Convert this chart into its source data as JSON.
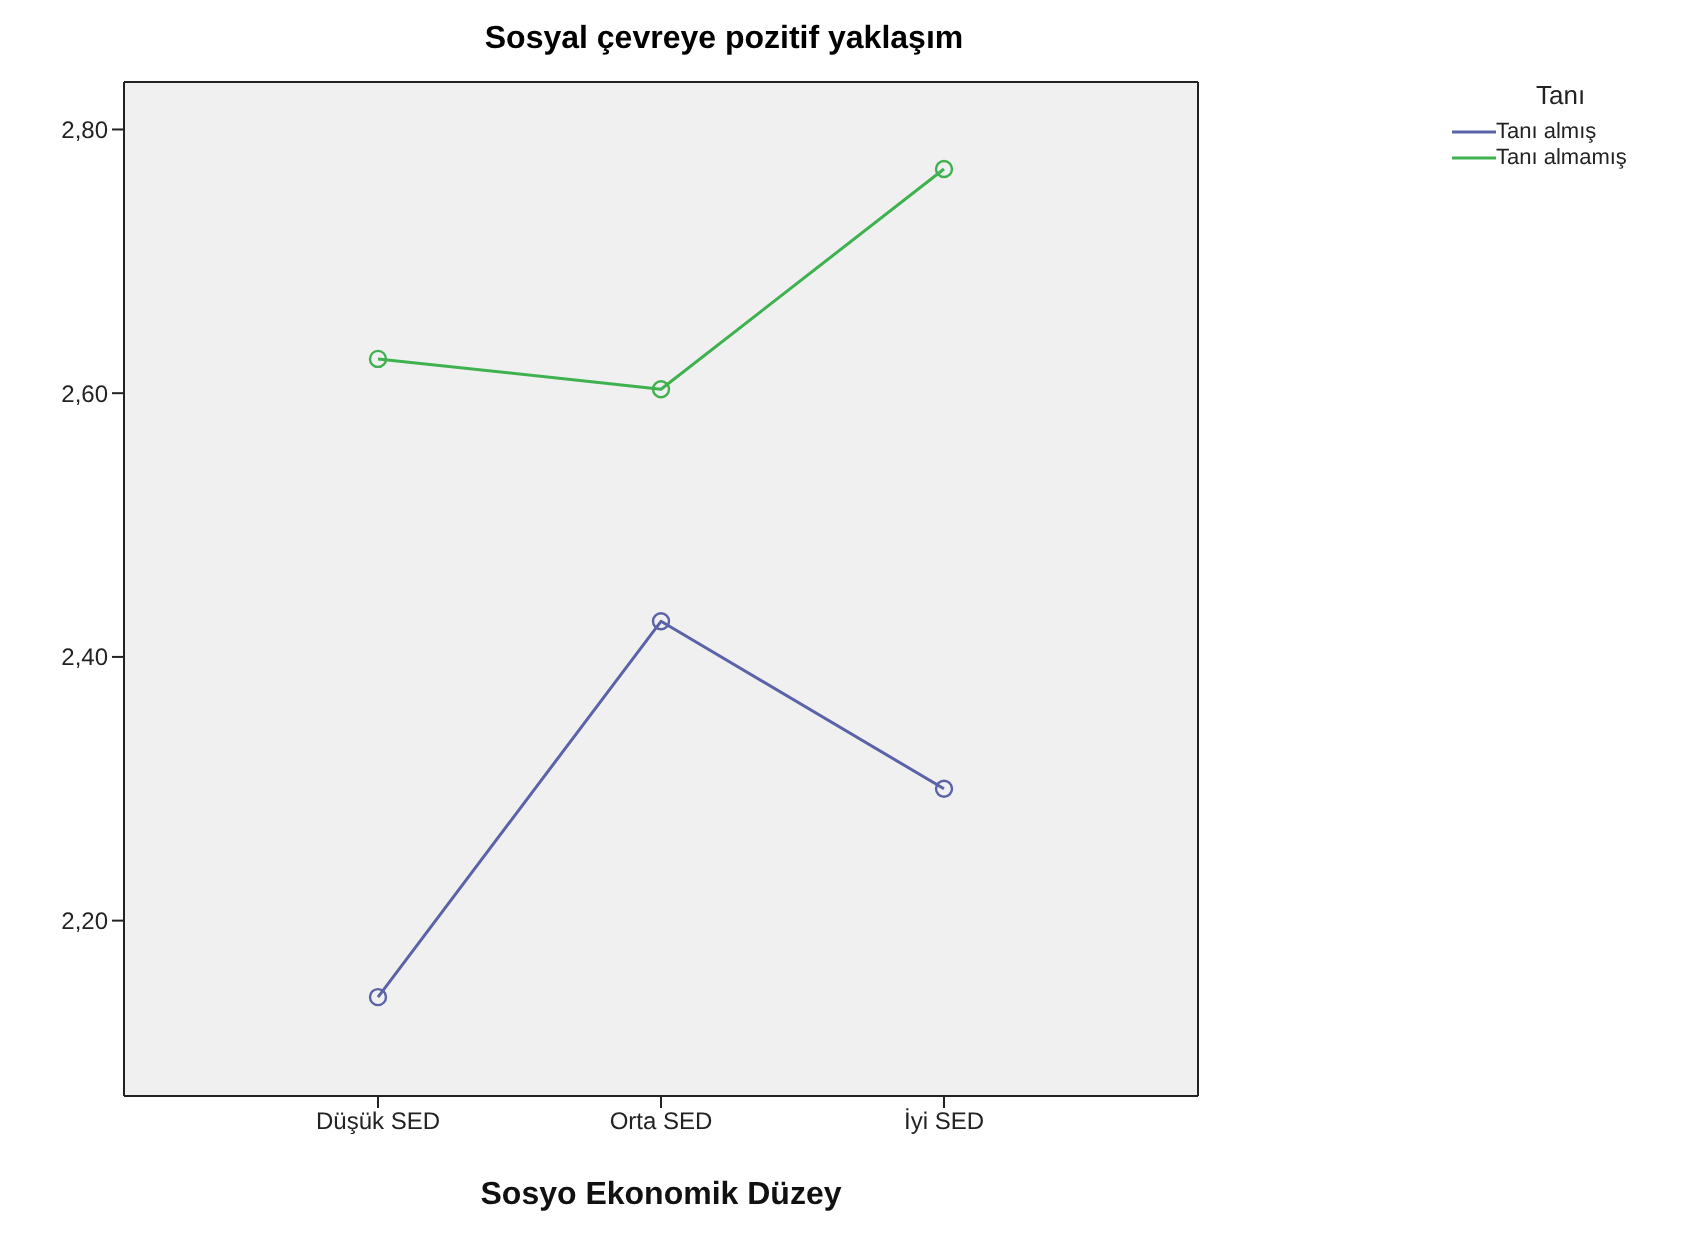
{
  "chart_data": {
    "type": "line",
    "title": "Sosyal çevreye pozitif yaklaşım",
    "xlabel": "Sosyo Ekonomik Düzey",
    "legend_title": "Tanı",
    "categories": [
      "Düşük SED",
      "Orta SED",
      "İyi SED"
    ],
    "series": [
      {
        "name": "Tanı almış",
        "color": "#5b63a8",
        "values": [
          2.142,
          2.427,
          2.3
        ]
      },
      {
        "name": "Tanı almamış",
        "color": "#3fb24f",
        "values": [
          2.626,
          2.603,
          2.77
        ]
      }
    ],
    "ylim": [
      2.067,
      2.836
    ],
    "yticks": [
      {
        "value": 2.2,
        "label": "2,20"
      },
      {
        "value": 2.4,
        "label": "2,40"
      },
      {
        "value": 2.6,
        "label": "2,60"
      },
      {
        "value": 2.8,
        "label": "2,80"
      }
    ],
    "grid": false,
    "legend": "top right",
    "marker": "circle",
    "line_style": "solid"
  }
}
